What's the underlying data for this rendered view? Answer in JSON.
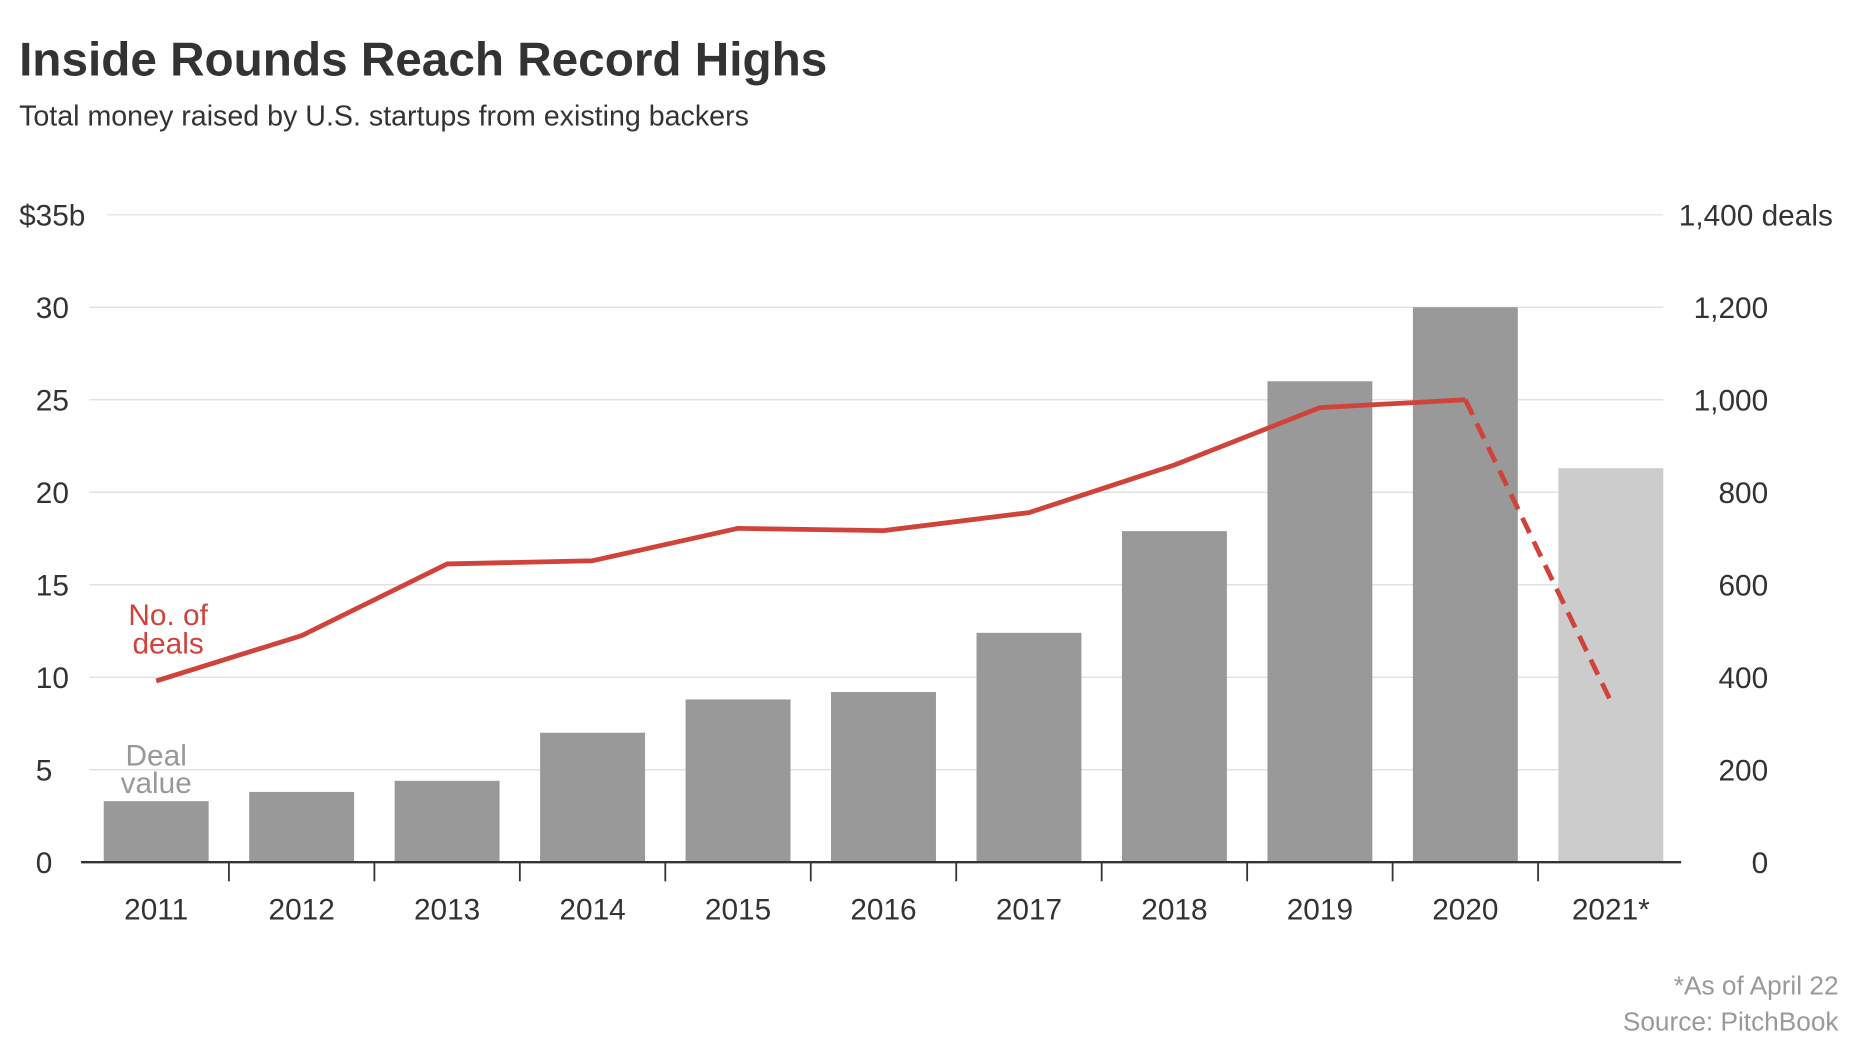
{
  "chart_data": {
    "type": "bar+line",
    "title": "Inside Rounds Reach Record Highs",
    "subtitle": "Total money raised by U.S. startups from existing backers",
    "categories": [
      "2011",
      "2012",
      "2013",
      "2014",
      "2015",
      "2016",
      "2017",
      "2018",
      "2019",
      "2020",
      "2021*"
    ],
    "series": [
      {
        "name": "Deal value",
        "label_lines": [
          "Deal",
          "value"
        ],
        "type": "bar",
        "axis": "left",
        "unit": "$b",
        "values": [
          3.3,
          3.8,
          4.4,
          7.0,
          8.8,
          9.2,
          12.4,
          17.9,
          26.0,
          30.0,
          21.3
        ],
        "color": "#999999",
        "partial_color": "#cccccc"
      },
      {
        "name": "No. of deals",
        "label_lines": [
          "No. of",
          "deals"
        ],
        "type": "line",
        "axis": "right",
        "values": [
          392,
          490,
          645,
          652,
          722,
          717,
          756,
          859,
          983,
          1000,
          348
        ],
        "color": "#d0433a"
      }
    ],
    "left_axis": {
      "ylim": [
        0,
        35
      ],
      "ticks": [
        "0",
        "5",
        "10",
        "15",
        "20",
        "25",
        "30",
        "$35b"
      ]
    },
    "right_axis": {
      "ylim": [
        0,
        1400
      ],
      "ticks": [
        "0",
        "200",
        "400",
        "600",
        "800",
        "1,000",
        "1,200",
        "1,400 deals"
      ]
    },
    "grid": true,
    "footnote": "*As of April 22",
    "source": "Source: PitchBook"
  }
}
